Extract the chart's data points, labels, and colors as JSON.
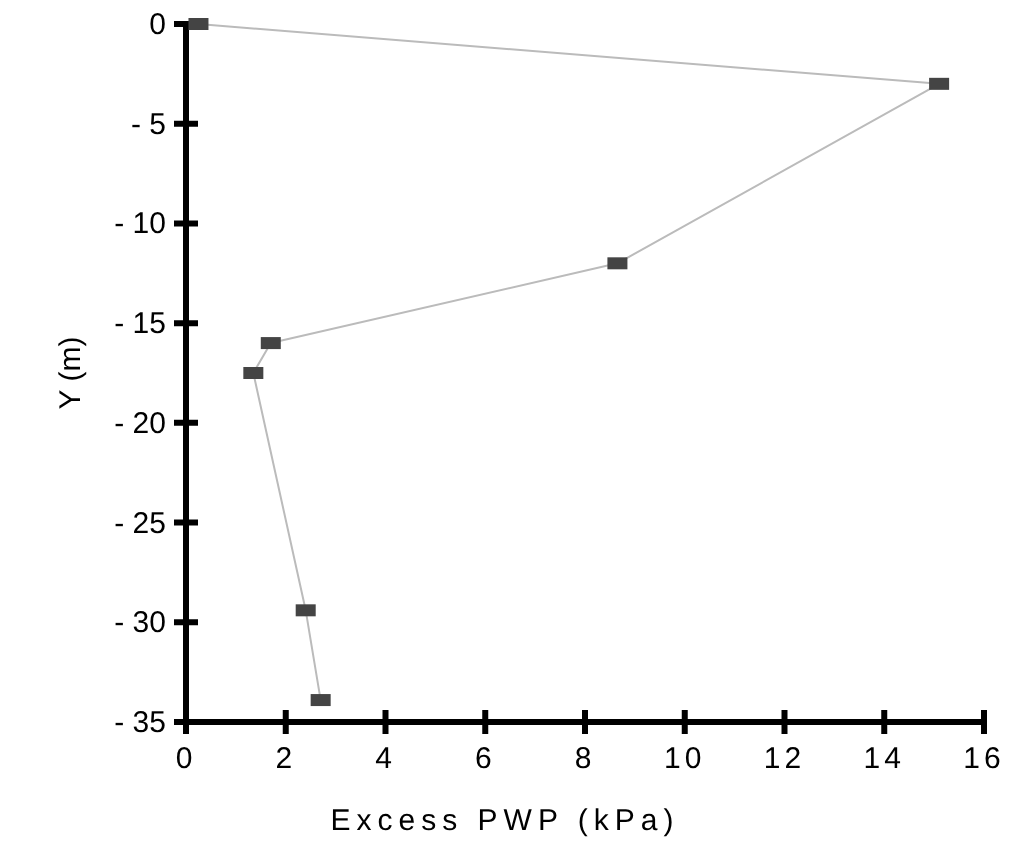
{
  "chart_data": {
    "type": "line",
    "xlabel": "Excess PWP (kPa)",
    "ylabel": "Y (m)",
    "x": [
      0.25,
      15.1,
      8.65,
      1.7,
      1.35,
      2.4,
      2.7
    ],
    "series": [
      {
        "color": "#444444",
        "values": [
          0,
          -3,
          -12,
          -16,
          -17.5,
          -29.4,
          -33.9
        ]
      }
    ],
    "xlim": [
      0,
      16
    ],
    "xticks": [
      0,
      2,
      4,
      6,
      8,
      10,
      12,
      14,
      16
    ],
    "ylim": [
      -35,
      0
    ],
    "yticks": [
      0,
      -5,
      -10,
      -15,
      -20,
      -25,
      -30,
      -35
    ],
    "marker": "square",
    "line_style": "solid",
    "grid": false
  }
}
